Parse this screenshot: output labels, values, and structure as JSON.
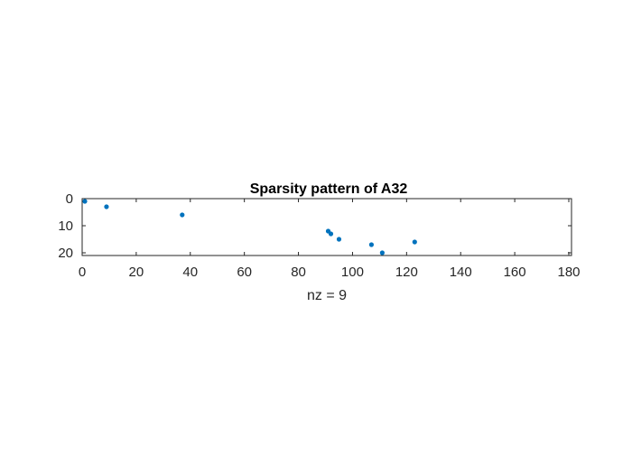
{
  "chart_data": {
    "type": "scatter",
    "title": "Sparsity pattern of A32",
    "xlabel": "nz = 9",
    "ylabel": "",
    "xlim": [
      0,
      181
    ],
    "ylim": [
      21,
      0
    ],
    "y_axis_reversed": true,
    "x_ticks": [
      "0",
      "20",
      "40",
      "60",
      "80",
      "100",
      "120",
      "140",
      "160",
      "180"
    ],
    "y_ticks": [
      "0",
      "10",
      "20"
    ],
    "grid": false,
    "marker_color": "#0072BD",
    "points": [
      {
        "x": 1,
        "y": 1
      },
      {
        "x": 9,
        "y": 3
      },
      {
        "x": 37,
        "y": 6
      },
      {
        "x": 91,
        "y": 12
      },
      {
        "x": 92,
        "y": 13
      },
      {
        "x": 95,
        "y": 15
      },
      {
        "x": 107,
        "y": 17
      },
      {
        "x": 111,
        "y": 20
      },
      {
        "x": 123,
        "y": 16
      }
    ]
  }
}
